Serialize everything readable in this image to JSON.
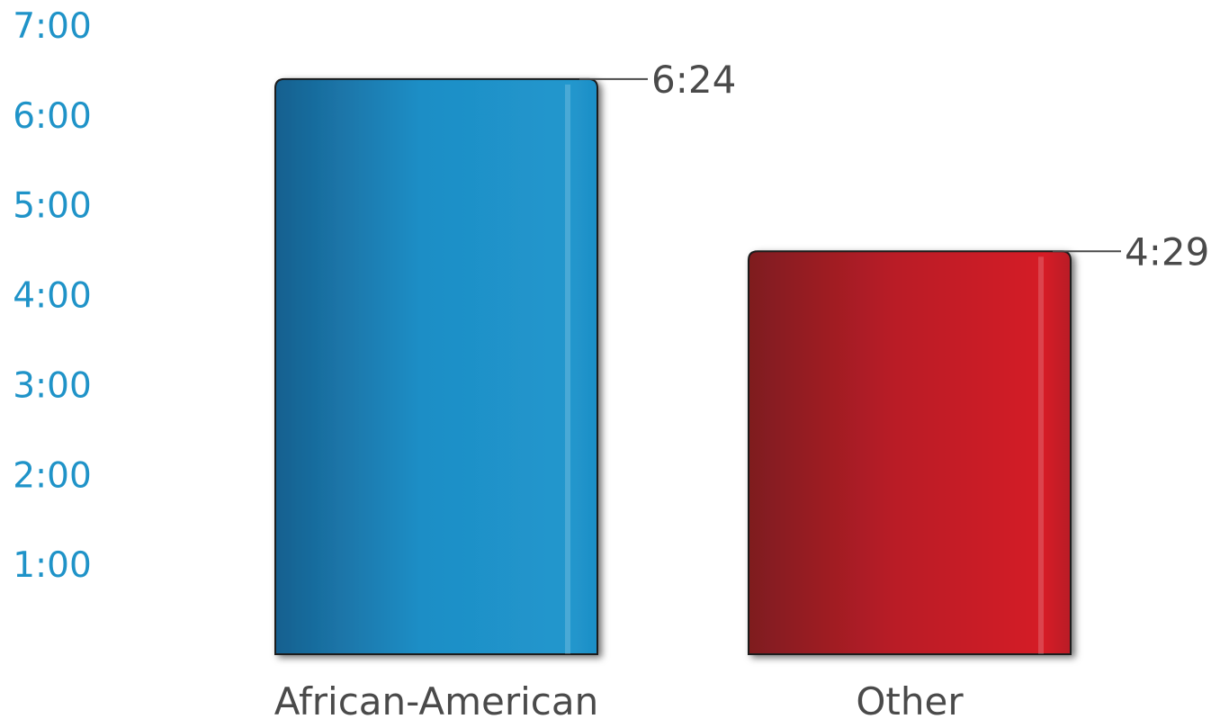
{
  "chart_data": {
    "type": "bar",
    "title": "",
    "xlabel": "",
    "ylabel": "",
    "categories": [
      "African-American",
      "Other"
    ],
    "values_minutes": [
      384,
      269
    ],
    "data_labels": [
      "6:24",
      "4:29"
    ],
    "ylim_minutes": [
      0,
      420
    ],
    "yticks": [
      {
        "label": "1:00",
        "minutes": 60
      },
      {
        "label": "2:00",
        "minutes": 120
      },
      {
        "label": "3:00",
        "minutes": 180
      },
      {
        "label": "4:00",
        "minutes": 240
      },
      {
        "label": "5:00",
        "minutes": 300
      },
      {
        "label": "6:00",
        "minutes": 360
      },
      {
        "label": "7:00",
        "minutes": 420
      }
    ],
    "grid": true,
    "legend": "none",
    "colors": {
      "gridline": "#1f93c8",
      "tick_label": "#1f93c8",
      "category_label": "#4a4a4a",
      "bars": [
        {
          "dark": "#17608f",
          "mid": "#1e8ec6",
          "light": "#2197cd"
        },
        {
          "dark": "#7e1a1f",
          "mid": "#b91f27",
          "light": "#d51f27"
        }
      ]
    }
  }
}
